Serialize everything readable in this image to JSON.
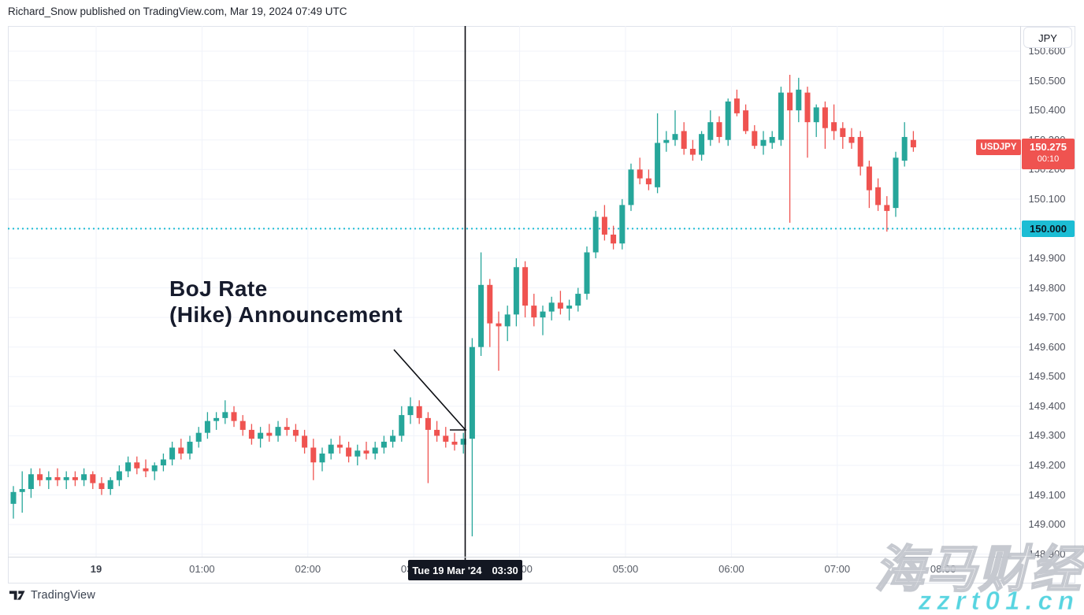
{
  "header": {
    "publication_note": "Richard_Snow published on TradingView.com, Mar 19, 2024 07:49 UTC"
  },
  "annotation": {
    "line1": "BoJ Rate",
    "line2": "(Hike) Announcement"
  },
  "symbol_button_label": "JPY",
  "price_axis": {
    "tick_labels": [
      "150.600",
      "150.500",
      "150.400",
      "150.300",
      "150.200",
      "150.100",
      "150.000",
      "149.900",
      "149.800",
      "149.700",
      "149.600",
      "149.500",
      "149.400",
      "149.300",
      "149.200",
      "149.100",
      "149.000",
      "148.900"
    ]
  },
  "last_price_badge": {
    "symbol": "USDJPY",
    "price": "150.275",
    "countdown": "00:10",
    "color": "#ef5350"
  },
  "level_badge": {
    "price": "150.000",
    "color": "#1cbdd4"
  },
  "time_axis": {
    "ticks": [
      {
        "label": "19",
        "hour": 0,
        "emphasis": true
      },
      {
        "label": "01:00",
        "hour": 1
      },
      {
        "label": "02:00",
        "hour": 2
      },
      {
        "label": "03:00",
        "hour": 3
      },
      {
        "label": "04:00",
        "hour": 4
      },
      {
        "label": "05:00",
        "hour": 5
      },
      {
        "label": "06:00",
        "hour": 6
      },
      {
        "label": "07:00",
        "hour": 7
      },
      {
        "label": "08:00",
        "hour": 8
      }
    ],
    "crosshair_tooltip": {
      "date": "Tue 19 Mar '24",
      "time": "03:30"
    }
  },
  "footer": {
    "brand": "TradingView"
  },
  "watermark": {
    "title": "海马财经",
    "url": "zzrt01.cn"
  },
  "chart_data": {
    "type": "candlestick",
    "symbol": "USDJPY",
    "interval_minutes": 5,
    "first_candle_time": "23:15",
    "event_marker": {
      "time": "03:30",
      "label": "BoJ Rate (Hike) Announcement"
    },
    "horizontal_level": 150.0,
    "last_price": 150.275,
    "ylim": [
      148.85,
      150.65
    ],
    "up_color": "#26a69a",
    "down_color": "#ef5350",
    "level_line_color": "#1cbdd4",
    "grid_color": "#f0f3fa",
    "candles_ohlc": [
      [
        149.07,
        149.13,
        149.02,
        149.11
      ],
      [
        149.11,
        149.18,
        149.04,
        149.12
      ],
      [
        149.12,
        149.19,
        149.09,
        149.17
      ],
      [
        149.17,
        149.19,
        149.13,
        149.15
      ],
      [
        149.15,
        149.18,
        149.12,
        149.16
      ],
      [
        149.16,
        149.19,
        149.13,
        149.15
      ],
      [
        149.15,
        149.18,
        149.12,
        149.16
      ],
      [
        149.16,
        149.18,
        149.13,
        149.15
      ],
      [
        149.15,
        149.19,
        149.13,
        149.17
      ],
      [
        149.17,
        149.18,
        149.12,
        149.14
      ],
      [
        149.14,
        149.16,
        149.1,
        149.12
      ],
      [
        149.12,
        149.16,
        149.1,
        149.15
      ],
      [
        149.15,
        149.2,
        149.13,
        149.18
      ],
      [
        149.18,
        149.23,
        149.16,
        149.21
      ],
      [
        149.21,
        149.23,
        149.17,
        149.19
      ],
      [
        149.19,
        149.22,
        149.16,
        149.18
      ],
      [
        149.18,
        149.21,
        149.15,
        149.2
      ],
      [
        149.2,
        149.24,
        149.18,
        149.22
      ],
      [
        149.22,
        149.28,
        149.2,
        149.26
      ],
      [
        149.26,
        149.29,
        149.22,
        149.24
      ],
      [
        149.24,
        149.3,
        149.22,
        149.28
      ],
      [
        149.28,
        149.33,
        149.26,
        149.31
      ],
      [
        149.31,
        149.38,
        149.29,
        149.35
      ],
      [
        149.35,
        149.38,
        149.32,
        149.36
      ],
      [
        149.36,
        149.42,
        149.34,
        149.38
      ],
      [
        149.38,
        149.4,
        149.33,
        149.35
      ],
      [
        149.35,
        149.37,
        149.3,
        149.32
      ],
      [
        149.32,
        149.34,
        149.27,
        149.29
      ],
      [
        149.29,
        149.33,
        149.26,
        149.31
      ],
      [
        149.31,
        149.34,
        149.28,
        149.3
      ],
      [
        149.3,
        149.35,
        149.28,
        149.33
      ],
      [
        149.33,
        149.36,
        149.3,
        149.32
      ],
      [
        149.32,
        149.34,
        149.28,
        149.3
      ],
      [
        149.3,
        149.32,
        149.24,
        149.26
      ],
      [
        149.26,
        149.29,
        149.15,
        149.21
      ],
      [
        149.21,
        149.26,
        149.18,
        149.24
      ],
      [
        149.24,
        149.29,
        149.22,
        149.27
      ],
      [
        149.27,
        149.3,
        149.24,
        149.26
      ],
      [
        149.26,
        149.28,
        149.21,
        149.23
      ],
      [
        149.23,
        149.27,
        149.2,
        149.25
      ],
      [
        149.25,
        149.28,
        149.22,
        149.24
      ],
      [
        149.24,
        149.28,
        149.22,
        149.26
      ],
      [
        149.26,
        149.3,
        149.24,
        149.28
      ],
      [
        149.28,
        149.32,
        149.26,
        149.3
      ],
      [
        149.3,
        149.4,
        149.28,
        149.37
      ],
      [
        149.37,
        149.43,
        149.34,
        149.4
      ],
      [
        149.4,
        149.42,
        149.34,
        149.36
      ],
      [
        149.36,
        149.38,
        149.14,
        149.32
      ],
      [
        149.32,
        149.35,
        149.28,
        149.3
      ],
      [
        149.3,
        149.33,
        149.26,
        149.28
      ],
      [
        149.28,
        149.31,
        149.25,
        149.27
      ],
      [
        149.27,
        149.31,
        149.24,
        149.29
      ],
      [
        149.29,
        149.63,
        148.96,
        149.6
      ],
      [
        149.6,
        149.92,
        149.57,
        149.81
      ],
      [
        149.81,
        149.83,
        149.6,
        149.68
      ],
      [
        149.68,
        149.72,
        149.52,
        149.67
      ],
      [
        149.67,
        149.74,
        149.62,
        149.71
      ],
      [
        149.71,
        149.9,
        149.67,
        149.87
      ],
      [
        149.87,
        149.89,
        149.7,
        149.74
      ],
      [
        149.74,
        149.78,
        149.67,
        149.7
      ],
      [
        149.7,
        149.74,
        149.64,
        149.72
      ],
      [
        149.72,
        149.77,
        149.69,
        149.75
      ],
      [
        149.75,
        149.79,
        149.71,
        149.73
      ],
      [
        149.73,
        149.76,
        149.69,
        149.74
      ],
      [
        149.74,
        149.8,
        149.72,
        149.78
      ],
      [
        149.78,
        149.94,
        149.76,
        149.92
      ],
      [
        149.92,
        150.06,
        149.9,
        150.04
      ],
      [
        150.04,
        150.08,
        149.96,
        149.98
      ],
      [
        149.98,
        150.01,
        149.93,
        149.95
      ],
      [
        149.95,
        150.1,
        149.93,
        150.08
      ],
      [
        150.08,
        150.22,
        150.06,
        150.2
      ],
      [
        150.2,
        150.24,
        150.15,
        150.17
      ],
      [
        150.17,
        150.2,
        150.13,
        150.15
      ],
      [
        150.14,
        150.39,
        150.12,
        150.29
      ],
      [
        150.29,
        150.33,
        150.26,
        150.3
      ],
      [
        150.3,
        150.4,
        150.28,
        150.32
      ],
      [
        150.33,
        150.36,
        150.25,
        150.27
      ],
      [
        150.27,
        150.3,
        150.23,
        150.25
      ],
      [
        150.25,
        150.33,
        150.23,
        150.32
      ],
      [
        150.3,
        150.4,
        150.28,
        150.36
      ],
      [
        150.36,
        150.38,
        150.29,
        150.31
      ],
      [
        150.3,
        150.44,
        150.28,
        150.43
      ],
      [
        150.44,
        150.47,
        150.38,
        150.39
      ],
      [
        150.4,
        150.42,
        150.32,
        150.33
      ],
      [
        150.33,
        150.35,
        150.27,
        150.28
      ],
      [
        150.28,
        150.33,
        150.25,
        150.3
      ],
      [
        150.29,
        150.33,
        150.27,
        150.31
      ],
      [
        150.3,
        150.48,
        150.28,
        150.46
      ],
      [
        150.46,
        150.52,
        150.02,
        150.4
      ],
      [
        150.4,
        150.51,
        150.36,
        150.47
      ],
      [
        150.46,
        150.48,
        150.24,
        150.36
      ],
      [
        150.36,
        150.42,
        150.31,
        150.41
      ],
      [
        150.41,
        150.43,
        150.27,
        150.34
      ],
      [
        150.36,
        150.42,
        150.3,
        150.33
      ],
      [
        150.34,
        150.36,
        150.27,
        150.31
      ],
      [
        150.31,
        150.34,
        150.27,
        150.29
      ],
      [
        150.31,
        150.33,
        150.18,
        150.21
      ],
      [
        150.21,
        150.23,
        150.07,
        150.13
      ],
      [
        150.14,
        150.17,
        150.06,
        150.08
      ],
      [
        150.08,
        150.11,
        149.99,
        150.06
      ],
      [
        150.07,
        150.26,
        150.04,
        150.24
      ],
      [
        150.23,
        150.36,
        150.21,
        150.31
      ],
      [
        150.3,
        150.33,
        150.26,
        150.275
      ]
    ]
  }
}
